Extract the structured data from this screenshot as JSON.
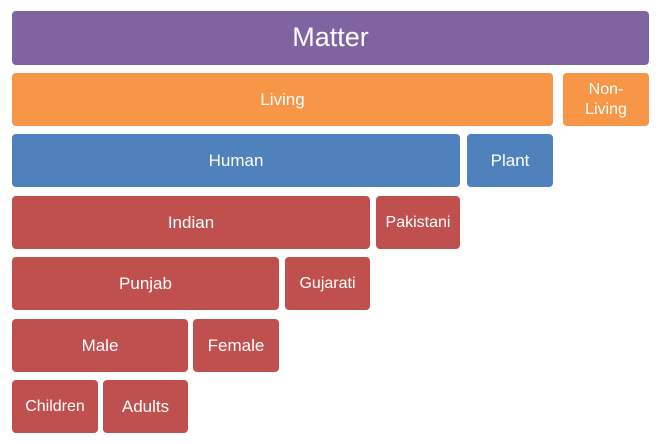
{
  "colors": {
    "level_1": "#8064a2",
    "level_2": "#f79646",
    "level_3": "#4f81bd",
    "level_4_to_7": "#c0504d",
    "text": "#ffffff"
  },
  "hierarchy": {
    "root": "Matter",
    "level_2": {
      "living": "Living",
      "non_living": "Non-\nLiving"
    },
    "level_3": {
      "human": "Human",
      "plant": "Plant"
    },
    "level_4": {
      "indian": "Indian",
      "pakistani": "Pakistani"
    },
    "level_5": {
      "punjab": "Punjab",
      "gujarati": "Gujarati"
    },
    "level_6": {
      "male": "Male",
      "female": "Female"
    },
    "level_7": {
      "children": "Children",
      "adults": "Adults"
    }
  }
}
